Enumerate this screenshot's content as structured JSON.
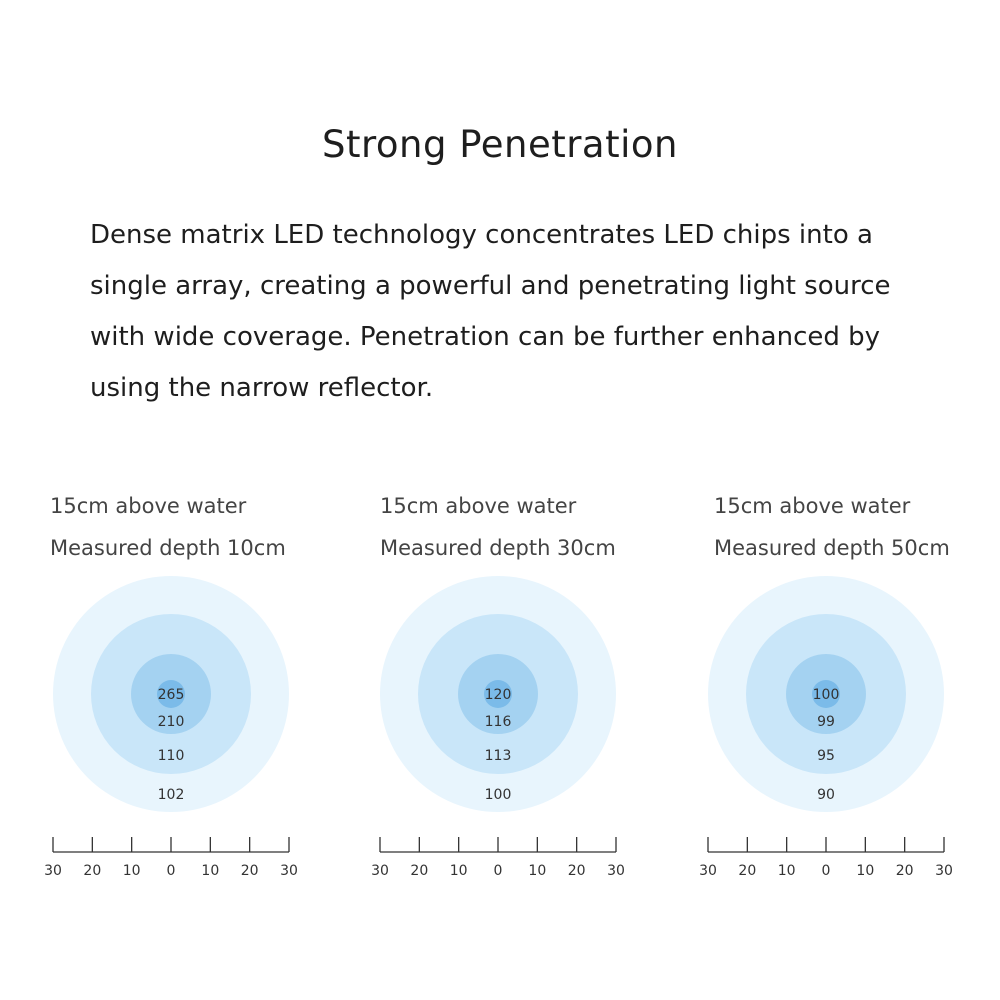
{
  "title": "Strong Penetration",
  "description": "Dense matrix LED technology concentrates LED chips into a single array, creating a powerful and penetrating light source with wide coverage. Penetration can be further enhanced by using the narrow reflector.",
  "colors": {
    "ring_outer": "#e8f5fd",
    "ring_mid": "#c9e6f9",
    "ring_inner": "#a4d2f1",
    "ring_core": "#7bbbe9",
    "axis": "#333333"
  },
  "chart_data": [
    {
      "type": "heatmap",
      "height_label": "15cm above water",
      "depth_label": "Measured depth 10cm",
      "ring_values": [
        265,
        210,
        110,
        102
      ],
      "x_ticks": [
        "30",
        "20",
        "10",
        "0",
        "10",
        "20",
        "30"
      ],
      "x_range": [
        -30,
        30
      ]
    },
    {
      "type": "heatmap",
      "height_label": "15cm above water",
      "depth_label": "Measured depth 30cm",
      "ring_values": [
        120,
        116,
        113,
        100
      ],
      "x_ticks": [
        "30",
        "20",
        "10",
        "0",
        "10",
        "20",
        "30"
      ],
      "x_range": [
        -30,
        30
      ]
    },
    {
      "type": "heatmap",
      "height_label": "15cm above water",
      "depth_label": "Measured depth 50cm",
      "ring_values": [
        100,
        99,
        95,
        90
      ],
      "x_ticks": [
        "30",
        "20",
        "10",
        "0",
        "10",
        "20",
        "30"
      ],
      "x_range": [
        -30,
        30
      ]
    }
  ]
}
